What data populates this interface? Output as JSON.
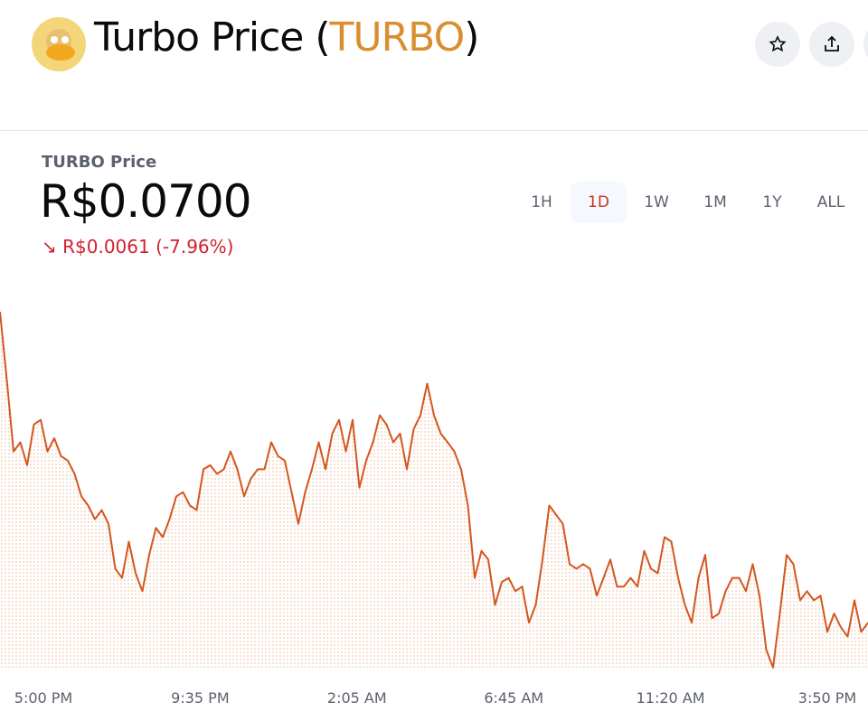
{
  "header": {
    "title_prefix": "Turbo Price (",
    "symbol": "TURBO",
    "title_suffix": ")"
  },
  "price": {
    "label": "TURBO Price",
    "value": "R$0.0700",
    "arrow": "↘",
    "change": "R$0.0061",
    "change_pct": "(-7.96%)"
  },
  "ranges": [
    "1H",
    "1D",
    "1W",
    "1M",
    "1Y",
    "ALL"
  ],
  "selected_range": "1D",
  "chart_data": {
    "type": "line",
    "color": "#d4561f",
    "x_labels": [
      "5:00 PM",
      "9:35 PM",
      "2:05 AM",
      "6:45 AM",
      "11:20 AM",
      "3:50 PM"
    ],
    "ylim": [
      0.0691,
      0.0769
    ],
    "values": [
      0.0761,
      0.07477,
      0.07336,
      0.07354,
      0.07309,
      0.07389,
      0.07398,
      0.07336,
      0.07362,
      0.07327,
      0.07318,
      0.07292,
      0.07248,
      0.0723,
      0.07203,
      0.07221,
      0.07194,
      0.07106,
      0.07088,
      0.07159,
      0.07097,
      0.07062,
      0.07133,
      0.07186,
      0.07168,
      0.07203,
      0.07248,
      0.07256,
      0.0723,
      0.07221,
      0.07301,
      0.07309,
      0.07292,
      0.07301,
      0.07336,
      0.07301,
      0.07248,
      0.07283,
      0.07301,
      0.07301,
      0.07354,
      0.07327,
      0.07318,
      0.07256,
      0.07194,
      0.07256,
      0.07301,
      0.07354,
      0.07301,
      0.07371,
      0.07398,
      0.07336,
      0.07398,
      0.07265,
      0.07318,
      0.07354,
      0.07407,
      0.07389,
      0.07354,
      0.07371,
      0.07301,
      0.0738,
      0.07407,
      0.07469,
      0.07407,
      0.07371,
      0.07354,
      0.07336,
      0.07301,
      0.0723,
      0.07088,
      0.07141,
      0.07124,
      0.07035,
      0.0708,
      0.07088,
      0.07062,
      0.07071,
      0.07,
      0.07035,
      0.07124,
      0.0723,
      0.07212,
      0.07194,
      0.07115,
      0.07106,
      0.07115,
      0.07106,
      0.07053,
      0.07088,
      0.07124,
      0.07071,
      0.07071,
      0.07088,
      0.07071,
      0.07141,
      0.07106,
      0.07097,
      0.07168,
      0.07159,
      0.07088,
      0.07035,
      0.07,
      0.07088,
      0.07133,
      0.07009,
      0.07018,
      0.07062,
      0.07088,
      0.07088,
      0.07062,
      0.07115,
      0.07053,
      0.06947,
      0.06912,
      0.07018,
      0.07133,
      0.07115,
      0.07044,
      0.07062,
      0.07044,
      0.07053,
      0.06982,
      0.07018,
      0.06991,
      0.06973,
      0.07044,
      0.06982,
      0.07
    ]
  }
}
